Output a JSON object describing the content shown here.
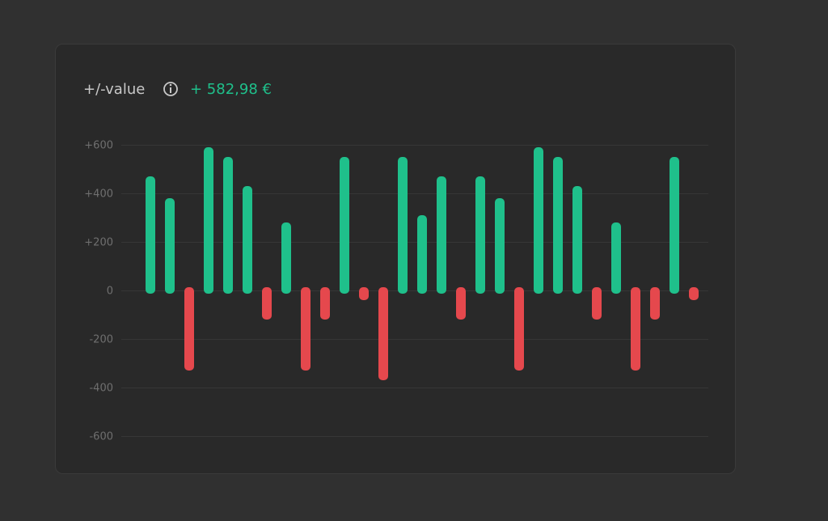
{
  "chart_data": {
    "type": "bar",
    "title": "+/-value",
    "total": "+ 582,98 €",
    "values": [
      470,
      380,
      -330,
      590,
      550,
      430,
      -120,
      280,
      -330,
      -120,
      550,
      -40,
      -370,
      550,
      310,
      470,
      -120,
      470,
      380,
      -330,
      590,
      550,
      430,
      -120,
      280,
      -330,
      -120,
      550,
      -40
    ],
    "positive_color": "#1fc08b",
    "negative_color": "#e5484d",
    "ylim": [
      -600,
      600
    ],
    "yticks": [
      {
        "value": 600,
        "label": "+600"
      },
      {
        "value": 400,
        "label": "+400"
      },
      {
        "value": 200,
        "label": "+200"
      },
      0,
      -200,
      -400,
      -600
    ],
    "grid": true
  }
}
